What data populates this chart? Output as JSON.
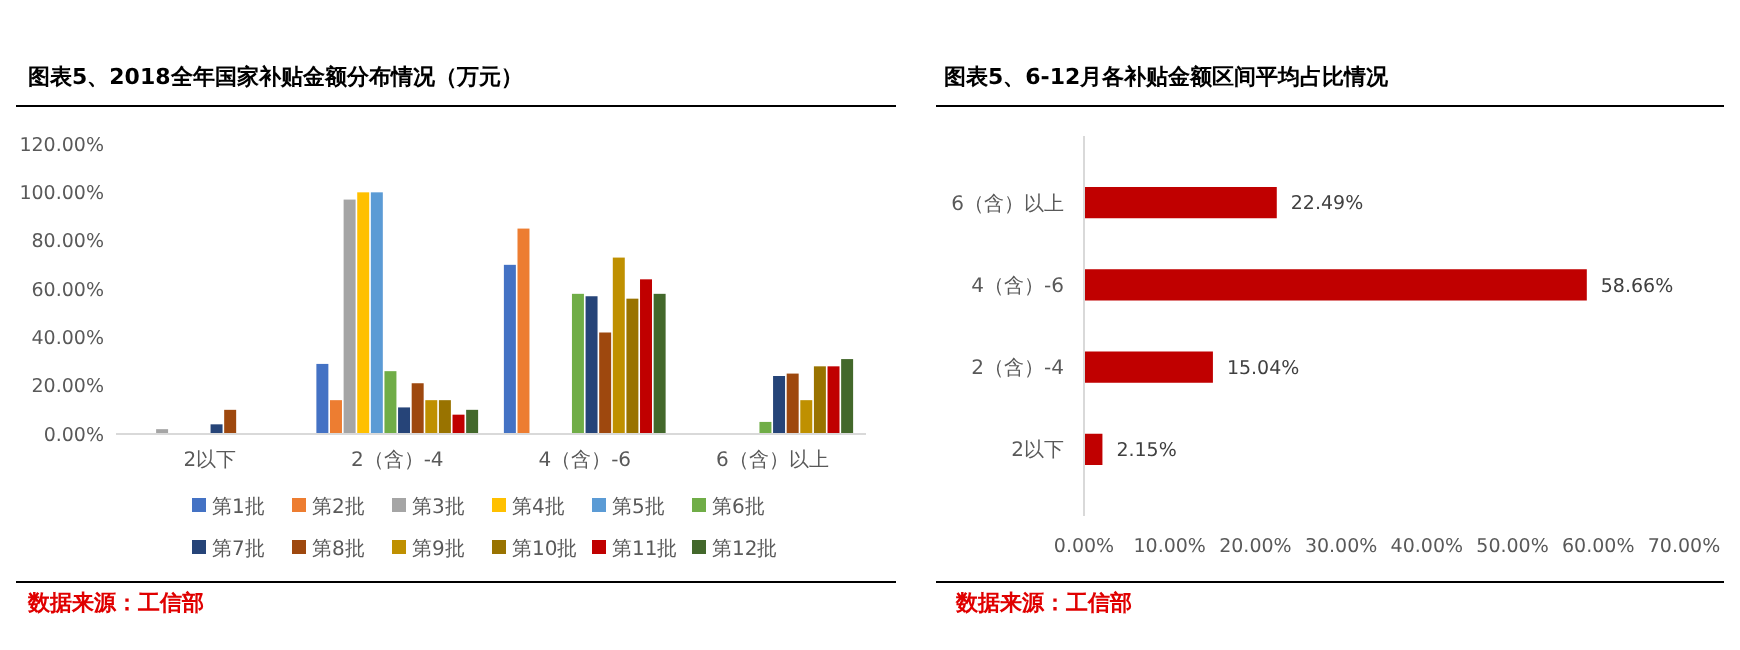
{
  "chart_data": [
    {
      "type": "bar",
      "title": "图表5、2018全年国家补贴金额分布情况（万元）",
      "categories": [
        "2以下",
        "2（含）-4",
        "4（含）-6",
        "6（含）以上"
      ],
      "series": [
        {
          "name": "第1批",
          "color": "#4472c4",
          "values": [
            0,
            29,
            70,
            0
          ]
        },
        {
          "name": "第2批",
          "color": "#ed7d31",
          "values": [
            0,
            14,
            85,
            0
          ]
        },
        {
          "name": "第3批",
          "color": "#a5a5a5",
          "values": [
            2,
            97,
            0,
            0
          ]
        },
        {
          "name": "第4批",
          "color": "#ffc000",
          "values": [
            0,
            100,
            0,
            0
          ]
        },
        {
          "name": "第5批",
          "color": "#5b9bd5",
          "values": [
            0,
            100,
            0,
            0
          ]
        },
        {
          "name": "第6批",
          "color": "#70ad47",
          "values": [
            0,
            26,
            58,
            5
          ]
        },
        {
          "name": "第7批",
          "color": "#264478",
          "values": [
            4,
            11,
            57,
            24
          ]
        },
        {
          "name": "第8批",
          "color": "#9e480e",
          "values": [
            10,
            21,
            42,
            25
          ]
        },
        {
          "name": "第9批",
          "color": "#bf9000",
          "values": [
            0,
            14,
            73,
            14
          ]
        },
        {
          "name": "第10批",
          "color": "#997300",
          "values": [
            0,
            14,
            56,
            28
          ]
        },
        {
          "name": "第11批",
          "color": "#c00000",
          "values": [
            0,
            8,
            64,
            28
          ]
        },
        {
          "name": "第12批",
          "color": "#43682b",
          "values": [
            0,
            10,
            58,
            31
          ]
        }
      ],
      "ylim": [
        0,
        120
      ],
      "yticks": [
        {
          "value": 0,
          "label": "0.00%"
        },
        {
          "value": 20,
          "label": "20.00%"
        },
        {
          "value": 40,
          "label": "40.00%"
        },
        {
          "value": 60,
          "label": "60.00%"
        },
        {
          "value": 80,
          "label": "80.00%"
        },
        {
          "value": 100,
          "label": "100.00%"
        },
        {
          "value": 120,
          "label": "120.00%"
        }
      ],
      "grid": false,
      "legend": "bottom",
      "annotations": [
        "数据来源：工信部"
      ]
    },
    {
      "type": "bar",
      "orientation": "horizontal",
      "title": "图表5、6-12月各补贴金额区间平均占比情况",
      "categories": [
        "6（含）以上",
        "4（含）-6",
        "2（含）-4",
        "2以下"
      ],
      "values": [
        22.49,
        58.66,
        15.04,
        2.15
      ],
      "color": "#c00000",
      "value_labels": [
        "22.49%",
        "58.66%",
        "15.04%",
        "2.15%"
      ],
      "xlim": [
        0,
        70
      ],
      "xticks": [
        {
          "value": 0,
          "label": "0.00%"
        },
        {
          "value": 10,
          "label": "10.00%"
        },
        {
          "value": 20,
          "label": "20.00%"
        },
        {
          "value": 30,
          "label": "30.00%"
        },
        {
          "value": 40,
          "label": "40.00%"
        },
        {
          "value": 50,
          "label": "50.00%"
        },
        {
          "value": 60,
          "label": "60.00%"
        },
        {
          "value": 70,
          "label": "70.00%"
        }
      ],
      "grid": false,
      "legend": false,
      "annotations": [
        "数据来源：工信部"
      ]
    }
  ]
}
